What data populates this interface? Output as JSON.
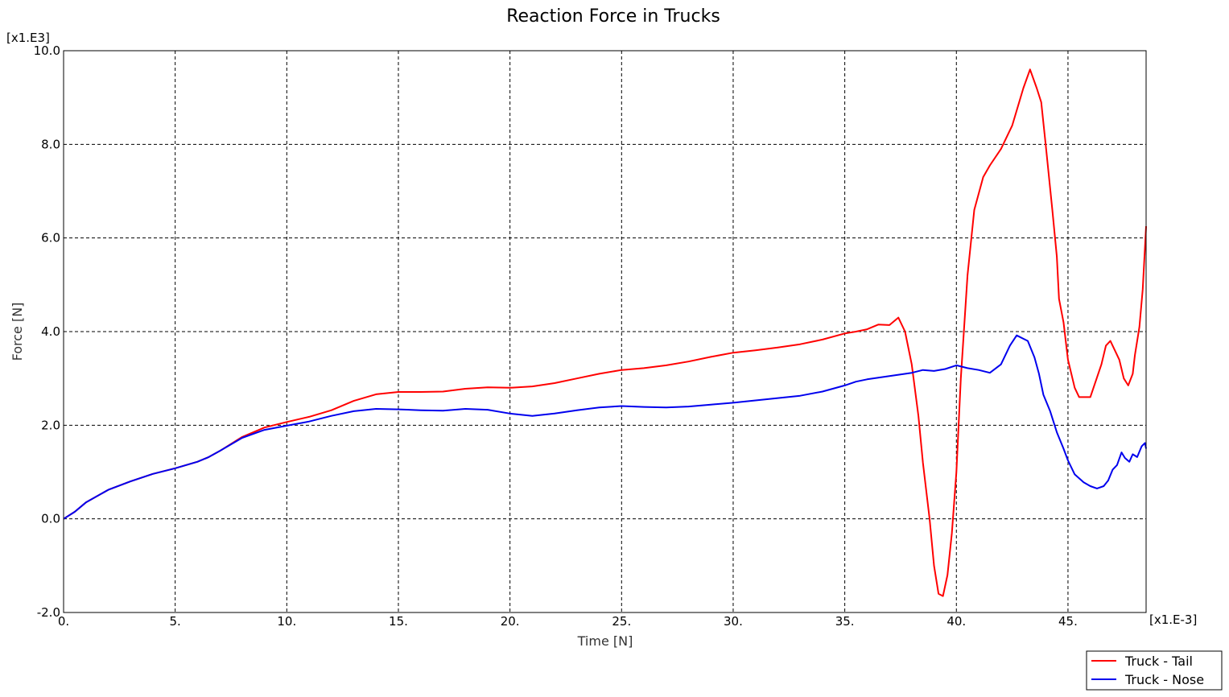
{
  "chart_data": {
    "type": "line",
    "title": "Reaction Force in Trucks",
    "xlabel": "Time [N]",
    "ylabel": "Force [N]",
    "x_multiplier": "[x1.E-3]",
    "y_multiplier": "[x1.E3]",
    "xlim": [
      0,
      48.5
    ],
    "ylim": [
      -2,
      10
    ],
    "x_ticks": [
      0,
      5,
      10,
      15,
      20,
      25,
      30,
      35,
      40,
      45
    ],
    "x_tick_labels": [
      "0.",
      "5.",
      "10.",
      "15.",
      "20.",
      "25.",
      "30.",
      "35.",
      "40.",
      "45."
    ],
    "y_ticks": [
      -2,
      0,
      2,
      4,
      6,
      8,
      10
    ],
    "y_tick_labels": [
      "-2.0",
      "0.0",
      "2.0",
      "4.0",
      "6.0",
      "8.0",
      "10.0"
    ],
    "grid": true,
    "legend_position": "bottom-right",
    "series": [
      {
        "name": "Truck - Tail",
        "color": "#ff0000",
        "points": [
          [
            0,
            0
          ],
          [
            0.5,
            0.15
          ],
          [
            1,
            0.35
          ],
          [
            2,
            0.62
          ],
          [
            3,
            0.8
          ],
          [
            4,
            0.96
          ],
          [
            5,
            1.08
          ],
          [
            6,
            1.22
          ],
          [
            6.5,
            1.32
          ],
          [
            7,
            1.45
          ],
          [
            8,
            1.75
          ],
          [
            9,
            1.95
          ],
          [
            10,
            2.07
          ],
          [
            11,
            2.18
          ],
          [
            12,
            2.32
          ],
          [
            13,
            2.52
          ],
          [
            14,
            2.66
          ],
          [
            15,
            2.71
          ],
          [
            16,
            2.71
          ],
          [
            17,
            2.72
          ],
          [
            18,
            2.78
          ],
          [
            19,
            2.81
          ],
          [
            20,
            2.8
          ],
          [
            21,
            2.83
          ],
          [
            22,
            2.9
          ],
          [
            23,
            3.0
          ],
          [
            24,
            3.1
          ],
          [
            25,
            3.18
          ],
          [
            26,
            3.22
          ],
          [
            27,
            3.28
          ],
          [
            28,
            3.36
          ],
          [
            29,
            3.46
          ],
          [
            30,
            3.55
          ],
          [
            31,
            3.6
          ],
          [
            32,
            3.66
          ],
          [
            33,
            3.73
          ],
          [
            34,
            3.83
          ],
          [
            35,
            3.96
          ],
          [
            35.5,
            4.0
          ],
          [
            36,
            4.05
          ],
          [
            36.5,
            4.15
          ],
          [
            37,
            4.14
          ],
          [
            37.4,
            4.3
          ],
          [
            37.7,
            4.0
          ],
          [
            38,
            3.3
          ],
          [
            38.3,
            2.2
          ],
          [
            38.5,
            1.2
          ],
          [
            38.8,
            0.0
          ],
          [
            39,
            -1.0
          ],
          [
            39.2,
            -1.6
          ],
          [
            39.4,
            -1.65
          ],
          [
            39.6,
            -1.2
          ],
          [
            39.8,
            -0.3
          ],
          [
            40,
            1.0
          ],
          [
            40.2,
            3.0
          ],
          [
            40.5,
            5.2
          ],
          [
            40.8,
            6.6
          ],
          [
            41.2,
            7.3
          ],
          [
            41.5,
            7.55
          ],
          [
            42,
            7.9
          ],
          [
            42.5,
            8.4
          ],
          [
            43,
            9.2
          ],
          [
            43.3,
            9.6
          ],
          [
            43.6,
            9.2
          ],
          [
            43.8,
            8.9
          ],
          [
            44,
            8.0
          ],
          [
            44.3,
            6.6
          ],
          [
            44.5,
            5.6
          ],
          [
            44.6,
            4.7
          ],
          [
            44.8,
            4.2
          ],
          [
            45,
            3.4
          ],
          [
            45.3,
            2.8
          ],
          [
            45.5,
            2.6
          ],
          [
            46,
            2.6
          ],
          [
            46.5,
            3.3
          ],
          [
            46.7,
            3.7
          ],
          [
            46.9,
            3.8
          ],
          [
            47.1,
            3.6
          ],
          [
            47.3,
            3.4
          ],
          [
            47.5,
            3.0
          ],
          [
            47.7,
            2.85
          ],
          [
            47.9,
            3.1
          ],
          [
            48,
            3.5
          ],
          [
            48.2,
            4.1
          ],
          [
            48.35,
            4.9
          ],
          [
            48.5,
            6.25
          ]
        ]
      },
      {
        "name": "Truck - Nose",
        "color": "#0000ee",
        "points": [
          [
            0,
            0
          ],
          [
            0.5,
            0.15
          ],
          [
            1,
            0.35
          ],
          [
            2,
            0.62
          ],
          [
            3,
            0.8
          ],
          [
            4,
            0.96
          ],
          [
            5,
            1.08
          ],
          [
            6,
            1.22
          ],
          [
            6.5,
            1.32
          ],
          [
            7,
            1.45
          ],
          [
            8,
            1.73
          ],
          [
            9,
            1.9
          ],
          [
            10,
            1.99
          ],
          [
            11,
            2.08
          ],
          [
            12,
            2.2
          ],
          [
            13,
            2.3
          ],
          [
            14,
            2.35
          ],
          [
            15,
            2.34
          ],
          [
            16,
            2.32
          ],
          [
            17,
            2.31
          ],
          [
            18,
            2.35
          ],
          [
            19,
            2.33
          ],
          [
            20,
            2.25
          ],
          [
            21,
            2.2
          ],
          [
            22,
            2.25
          ],
          [
            23,
            2.32
          ],
          [
            24,
            2.38
          ],
          [
            25,
            2.41
          ],
          [
            26,
            2.39
          ],
          [
            27,
            2.38
          ],
          [
            28,
            2.4
          ],
          [
            29,
            2.44
          ],
          [
            30,
            2.48
          ],
          [
            31,
            2.53
          ],
          [
            32,
            2.58
          ],
          [
            33,
            2.63
          ],
          [
            34,
            2.72
          ],
          [
            35,
            2.85
          ],
          [
            35.5,
            2.93
          ],
          [
            36,
            2.98
          ],
          [
            37,
            3.05
          ],
          [
            38,
            3.12
          ],
          [
            38.5,
            3.18
          ],
          [
            39,
            3.16
          ],
          [
            39.5,
            3.2
          ],
          [
            40,
            3.28
          ],
          [
            40.5,
            3.22
          ],
          [
            41,
            3.18
          ],
          [
            41.5,
            3.12
          ],
          [
            42,
            3.3
          ],
          [
            42.4,
            3.7
          ],
          [
            42.7,
            3.92
          ],
          [
            43.2,
            3.8
          ],
          [
            43.5,
            3.45
          ],
          [
            43.7,
            3.1
          ],
          [
            43.9,
            2.65
          ],
          [
            44.2,
            2.3
          ],
          [
            44.5,
            1.85
          ],
          [
            44.8,
            1.5
          ],
          [
            45,
            1.25
          ],
          [
            45.3,
            0.95
          ],
          [
            45.7,
            0.78
          ],
          [
            46,
            0.7
          ],
          [
            46.3,
            0.65
          ],
          [
            46.6,
            0.7
          ],
          [
            46.8,
            0.82
          ],
          [
            47,
            1.05
          ],
          [
            47.2,
            1.15
          ],
          [
            47.4,
            1.42
          ],
          [
            47.55,
            1.3
          ],
          [
            47.75,
            1.22
          ],
          [
            47.9,
            1.38
          ],
          [
            48.1,
            1.32
          ],
          [
            48.3,
            1.55
          ],
          [
            48.45,
            1.62
          ],
          [
            48.5,
            1.5
          ]
        ]
      }
    ]
  }
}
